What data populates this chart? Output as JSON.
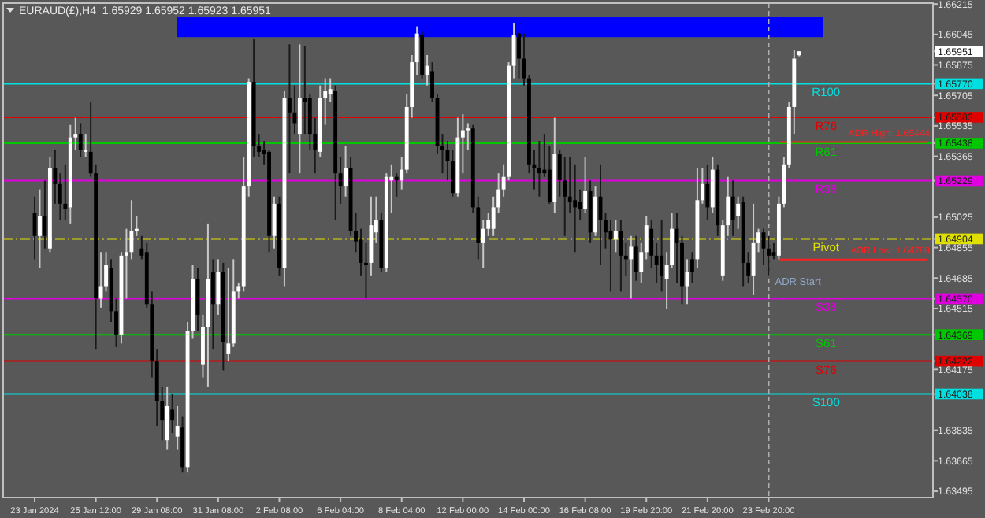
{
  "chart_data": {
    "type": "candlestick",
    "title": "EURAUD(£),H4  1.65929 1.65952 1.65923 1.65951",
    "categories": [
      "23 Jan 2024",
      null,
      null,
      null,
      null,
      null,
      null,
      null,
      null,
      null,
      null,
      null,
      "25 Jan 12:00",
      null,
      null,
      null,
      null,
      null,
      null,
      null,
      null,
      null,
      null,
      null,
      "29 Jan 08:00",
      null,
      null,
      null,
      null,
      null,
      null,
      null,
      null,
      null,
      null,
      null,
      "31 Jan 08:00",
      null,
      null,
      null,
      null,
      null,
      null,
      null,
      null,
      null,
      null,
      null,
      "2 Feb 08:00",
      null,
      null,
      null,
      null,
      null,
      null,
      null,
      null,
      null,
      null,
      null,
      "6 Feb 04:00",
      null,
      null,
      null,
      null,
      null,
      null,
      null,
      null,
      null,
      null,
      null,
      "8 Feb 04:00",
      null,
      null,
      null,
      null,
      null,
      null,
      null,
      null,
      null,
      null,
      null,
      "12 Feb 00:00",
      null,
      null,
      null,
      null,
      null,
      null,
      null,
      null,
      null,
      null,
      null,
      "14 Feb 00:00",
      null,
      null,
      null,
      null,
      null,
      null,
      null,
      null,
      null,
      null,
      null,
      "16 Feb 08:00",
      null,
      null,
      null,
      null,
      null,
      null,
      null,
      null,
      null,
      null,
      null,
      "19 Feb 20:00",
      null,
      null,
      null,
      null,
      null,
      null,
      null,
      null,
      null,
      null,
      null,
      "21 Feb 20:00",
      null,
      null,
      null,
      null,
      null,
      null,
      null,
      null,
      null,
      null,
      null,
      "23 Feb 20:00",
      null,
      null,
      null,
      null,
      null,
      null,
      null,
      null,
      null,
      null,
      null,
      null,
      null,
      null,
      null,
      null,
      null,
      null,
      null,
      null,
      null,
      null,
      null,
      null,
      null,
      null,
      null,
      null,
      null,
      null,
      null
    ],
    "ohlc": [
      [
        1.6505,
        1.6514,
        1.6479,
        1.6492
      ],
      [
        1.6492,
        1.6518,
        1.6474,
        1.6503
      ],
      [
        1.6503,
        1.6523,
        1.6485,
        1.6492
      ],
      [
        1.6485,
        1.6536,
        1.6483,
        1.653
      ],
      [
        1.653,
        1.654,
        1.651,
        1.6521
      ],
      [
        1.6521,
        1.6527,
        1.6501,
        1.651
      ],
      [
        1.651,
        1.6532,
        1.6501,
        1.6507
      ],
      [
        1.6508,
        1.6554,
        1.6499,
        1.6547
      ],
      [
        1.6547,
        1.6558,
        1.654,
        1.6549
      ],
      [
        1.6549,
        1.6555,
        1.6536,
        1.654
      ],
      [
        1.6539,
        1.6549,
        1.6536,
        1.654
      ],
      [
        1.6539,
        1.6567,
        1.6525,
        1.6527
      ],
      [
        1.6527,
        1.6532,
        1.6429,
        1.6457
      ],
      [
        1.6457,
        1.6483,
        1.6452,
        1.6464
      ],
      [
        1.6464,
        1.6483,
        1.6461,
        1.6476
      ],
      [
        1.6474,
        1.6479,
        1.6444,
        1.645
      ],
      [
        1.645,
        1.6457,
        1.643,
        1.6437
      ],
      [
        1.6437,
        1.6483,
        1.6432,
        1.6481
      ],
      [
        1.6481,
        1.6496,
        1.6457,
        1.6483
      ],
      [
        1.6483,
        1.6512,
        1.6479,
        1.6495
      ],
      [
        1.6495,
        1.6503,
        1.6492,
        1.6496
      ],
      [
        1.6485,
        1.6492,
        1.6479,
        1.6481
      ],
      [
        1.6483,
        1.6488,
        1.6452,
        1.6454
      ],
      [
        1.6454,
        1.6461,
        1.6413,
        1.6422
      ],
      [
        1.6422,
        1.6429,
        1.6386,
        1.64
      ],
      [
        1.64,
        1.6408,
        1.6378,
        1.6389
      ],
      [
        1.6378,
        1.6408,
        1.6373,
        1.6397
      ],
      [
        1.6395,
        1.6404,
        1.6382,
        1.6389
      ],
      [
        1.638,
        1.6397,
        1.6373,
        1.6386
      ],
      [
        1.6385,
        1.6391,
        1.636,
        1.6363
      ],
      [
        1.6363,
        1.6444,
        1.636,
        1.6439
      ],
      [
        1.6439,
        1.6476,
        1.6435,
        1.6468
      ],
      [
        1.6468,
        1.6474,
        1.6439,
        1.6448
      ],
      [
        1.642,
        1.6448,
        1.6413,
        1.6441
      ],
      [
        1.6441,
        1.6499,
        1.6408,
        1.6468
      ],
      [
        1.6472,
        1.6479,
        1.6429,
        1.6454
      ],
      [
        1.6454,
        1.6479,
        1.6448,
        1.6472
      ],
      [
        1.6472,
        1.6477,
        1.6417,
        1.6433
      ],
      [
        1.6426,
        1.6474,
        1.6422,
        1.6432
      ],
      [
        1.6432,
        1.6479,
        1.643,
        1.6461
      ],
      [
        1.6461,
        1.6466,
        1.6457,
        1.6464
      ],
      [
        1.6464,
        1.6536,
        1.6461,
        1.652
      ],
      [
        1.652,
        1.658,
        1.6514,
        1.6578
      ],
      [
        1.6578,
        1.6602,
        1.6536,
        1.6542
      ],
      [
        1.6542,
        1.6549,
        1.6536,
        1.6539
      ],
      [
        1.654,
        1.6545,
        1.6532,
        1.6538
      ],
      [
        1.6539,
        1.654,
        1.6483,
        1.6492
      ],
      [
        1.6492,
        1.6514,
        1.6485,
        1.651
      ],
      [
        1.651,
        1.6514,
        1.647,
        1.6474
      ],
      [
        1.6474,
        1.6573,
        1.6464,
        1.6569
      ],
      [
        1.6569,
        1.6599,
        1.6527,
        1.6561
      ],
      [
        1.6561,
        1.6576,
        1.6549,
        1.6555
      ],
      [
        1.6549,
        1.6599,
        1.6527,
        1.6569
      ],
      [
        1.6569,
        1.6598,
        1.6549,
        1.6567
      ],
      [
        1.6569,
        1.6571,
        1.654,
        1.6549
      ],
      [
        1.6549,
        1.6558,
        1.6527,
        1.654
      ],
      [
        1.6539,
        1.6576,
        1.6536,
        1.6569
      ],
      [
        1.6569,
        1.658,
        1.6554,
        1.6573
      ],
      [
        1.6571,
        1.658,
        1.6567,
        1.6574
      ],
      [
        1.6573,
        1.6576,
        1.6501,
        1.6527
      ],
      [
        1.6527,
        1.6536,
        1.651,
        1.652
      ],
      [
        1.652,
        1.6542,
        1.6514,
        1.653
      ],
      [
        1.653,
        1.6536,
        1.6492,
        1.6495
      ],
      [
        1.6495,
        1.6505,
        1.6483,
        1.6489
      ],
      [
        1.649,
        1.6496,
        1.647,
        1.6477
      ],
      [
        1.6477,
        1.6488,
        1.6457,
        1.6476
      ],
      [
        1.6477,
        1.6514,
        1.647,
        1.6498
      ],
      [
        1.6494,
        1.6514,
        1.6488,
        1.6501
      ],
      [
        1.6501,
        1.6505,
        1.6472,
        1.6474
      ],
      [
        1.6474,
        1.6527,
        1.6472,
        1.6525
      ],
      [
        1.6523,
        1.6532,
        1.6505,
        1.6525
      ],
      [
        1.6525,
        1.6527,
        1.6514,
        1.6523
      ],
      [
        1.6523,
        1.6536,
        1.6518,
        1.6529
      ],
      [
        1.6529,
        1.6571,
        1.6527,
        1.6564
      ],
      [
        1.6564,
        1.6593,
        1.6558,
        1.6589
      ],
      [
        1.6589,
        1.6609,
        1.6582,
        1.6605
      ],
      [
        1.6604,
        1.6606,
        1.658,
        1.6582
      ],
      [
        1.6582,
        1.6593,
        1.6576,
        1.6587
      ],
      [
        1.6584,
        1.6589,
        1.6567,
        1.6569
      ],
      [
        1.6569,
        1.6571,
        1.6538,
        1.6542
      ],
      [
        1.6542,
        1.6549,
        1.6527,
        1.654
      ],
      [
        1.654,
        1.6545,
        1.6523,
        1.6534
      ],
      [
        1.6534,
        1.654,
        1.6514,
        1.6516
      ],
      [
        1.6516,
        1.6558,
        1.6514,
        1.6547
      ],
      [
        1.6547,
        1.656,
        1.6527,
        1.6551
      ],
      [
        1.6551,
        1.6555,
        1.654,
        1.6552
      ],
      [
        1.6552,
        1.6554,
        1.6505,
        1.6508
      ],
      [
        1.6508,
        1.6514,
        1.6479,
        1.6488
      ],
      [
        1.6488,
        1.6501,
        1.6474,
        1.6496
      ],
      [
        1.6496,
        1.6505,
        1.6492,
        1.6501
      ],
      [
        1.6496,
        1.6514,
        1.6492,
        1.6508
      ],
      [
        1.6508,
        1.6527,
        1.6505,
        1.6518
      ],
      [
        1.6518,
        1.6532,
        1.6514,
        1.6525
      ],
      [
        1.6525,
        1.6589,
        1.6523,
        1.6587
      ],
      [
        1.6587,
        1.6611,
        1.658,
        1.6604
      ],
      [
        1.6605,
        1.6606,
        1.658,
        1.6591
      ],
      [
        1.6591,
        1.6605,
        1.6576,
        1.658
      ],
      [
        1.658,
        1.6582,
        1.6527,
        1.6532
      ],
      [
        1.6532,
        1.654,
        1.6518,
        1.653
      ],
      [
        1.653,
        1.6545,
        1.6514,
        1.6527
      ],
      [
        1.6529,
        1.6549,
        1.6525,
        1.6527
      ],
      [
        1.6529,
        1.6542,
        1.651,
        1.6511
      ],
      [
        1.6511,
        1.6558,
        1.6505,
        1.6538
      ],
      [
        1.6538,
        1.654,
        1.6514,
        1.6523
      ],
      [
        1.6523,
        1.6536,
        1.6492,
        1.6514
      ],
      [
        1.6514,
        1.6536,
        1.6505,
        1.6511
      ],
      [
        1.6512,
        1.6532,
        1.6483,
        1.6508
      ],
      [
        1.6511,
        1.6518,
        1.6501,
        1.6507
      ],
      [
        1.6507,
        1.6536,
        1.6505,
        1.6517
      ],
      [
        1.6517,
        1.6523,
        1.6488,
        1.6494
      ],
      [
        1.6494,
        1.652,
        1.6492,
        1.6514
      ],
      [
        1.6514,
        1.6532,
        1.6476,
        1.6501
      ],
      [
        1.6501,
        1.6505,
        1.6485,
        1.6494
      ],
      [
        1.6495,
        1.6501,
        1.6461,
        1.649
      ],
      [
        1.649,
        1.6501,
        1.6483,
        1.6495
      ],
      [
        1.6495,
        1.6501,
        1.6461,
        1.6481
      ],
      [
        1.6481,
        1.6488,
        1.647,
        1.6479
      ],
      [
        1.6479,
        1.6492,
        1.6457,
        1.6486
      ],
      [
        1.6486,
        1.6492,
        1.6467,
        1.6472
      ],
      [
        1.6472,
        1.6488,
        1.6466,
        1.6483
      ],
      [
        1.6483,
        1.6503,
        1.6479,
        1.6498
      ],
      [
        1.6496,
        1.6501,
        1.6474,
        1.6481
      ],
      [
        1.6481,
        1.6488,
        1.6466,
        1.6476
      ],
      [
        1.6481,
        1.6501,
        1.6461,
        1.647
      ],
      [
        1.6468,
        1.6483,
        1.6451,
        1.6476
      ],
      [
        1.6476,
        1.6505,
        1.6474,
        1.6496
      ],
      [
        1.6496,
        1.6505,
        1.6466,
        1.6488
      ],
      [
        1.6488,
        1.6492,
        1.6454,
        1.6464
      ],
      [
        1.6464,
        1.6479,
        1.6454,
        1.6472
      ],
      [
        1.6479,
        1.6483,
        1.6466,
        1.6472
      ],
      [
        1.6479,
        1.653,
        1.6474,
        1.6512
      ],
      [
        1.6512,
        1.653,
        1.651,
        1.6521
      ],
      [
        1.6521,
        1.6532,
        1.6501,
        1.6508
      ],
      [
        1.6508,
        1.6536,
        1.6505,
        1.6529
      ],
      [
        1.6529,
        1.6532,
        1.6492,
        1.6498
      ],
      [
        1.647,
        1.6501,
        1.6467,
        1.6498
      ],
      [
        1.6498,
        1.6525,
        1.6492,
        1.6514
      ],
      [
        1.6514,
        1.6523,
        1.6492,
        1.6501
      ],
      [
        1.6503,
        1.6514,
        1.6496,
        1.651
      ],
      [
        1.6511,
        1.6514,
        1.6464,
        1.6477
      ],
      [
        1.6477,
        1.6483,
        1.6466,
        1.647
      ],
      [
        1.647,
        1.651,
        1.6459,
        1.6488
      ],
      [
        1.6488,
        1.6496,
        1.6483,
        1.6494
      ],
      [
        1.6494,
        1.6496,
        1.6476,
        1.6485
      ],
      [
        1.6485,
        1.6492,
        1.647,
        1.6481
      ],
      [
        1.6483,
        1.6488,
        1.6479,
        1.6481
      ],
      [
        1.6481,
        1.6514,
        1.6479,
        1.651
      ],
      [
        1.651,
        1.6536,
        1.6508,
        1.6532
      ],
      [
        1.6532,
        1.6567,
        1.653,
        1.6564
      ],
      [
        1.6564,
        1.6596,
        1.6549,
        1.6591
      ],
      [
        1.65929,
        1.65952,
        1.65923,
        1.65951
      ],
      null,
      null,
      null,
      null,
      null,
      null,
      null,
      null,
      null,
      null,
      null,
      null,
      null,
      null,
      null,
      null,
      null,
      null,
      null,
      null,
      null,
      null,
      null,
      null,
      null
    ],
    "series": [
      {
        "type": "line",
        "name": "ADR High: 1.65444",
        "color": "#ff2020",
        "values": [
          null,
          null,
          null,
          null,
          null,
          null,
          null,
          null,
          null,
          null,
          null,
          null,
          null,
          null,
          null,
          null,
          null,
          null,
          null,
          null,
          null,
          null,
          null,
          null,
          null,
          null,
          null,
          null,
          null,
          null,
          null,
          null,
          null,
          null,
          null,
          null,
          null,
          null,
          null,
          null,
          null,
          null,
          null,
          null,
          null,
          null,
          null,
          null,
          null,
          null,
          null,
          null,
          null,
          null,
          null,
          null,
          null,
          null,
          null,
          null,
          null,
          null,
          null,
          null,
          null,
          null,
          null,
          null,
          null,
          null,
          null,
          null,
          null,
          null,
          null,
          null,
          null,
          null,
          null,
          null,
          null,
          null,
          null,
          null,
          null,
          null,
          null,
          null,
          null,
          null,
          null,
          null,
          null,
          null,
          null,
          null,
          null,
          null,
          null,
          null,
          null,
          null,
          null,
          null,
          null,
          null,
          null,
          null,
          null,
          null,
          null,
          null,
          null,
          null,
          null,
          null,
          null,
          null,
          null,
          null,
          null,
          null,
          null,
          null,
          null,
          null,
          null,
          null,
          null,
          null,
          null,
          null,
          null,
          null,
          null,
          null,
          null,
          null,
          null,
          null,
          null,
          null,
          null,
          null,
          null,
          null,
          1.65444,
          1.65444,
          1.65444,
          1.65444,
          1.65444,
          1.65444,
          1.65444,
          1.65444,
          1.65444,
          1.65444,
          1.65444,
          1.65444,
          1.65444,
          1.65444,
          1.65444,
          1.65444,
          1.65444,
          1.65444,
          1.65444,
          1.65444,
          1.65444,
          1.65444,
          1.65444,
          1.65444,
          1.65444,
          1.65444,
          1.65444,
          1.65444,
          1.65444,
          1.65444
        ]
      },
      {
        "type": "line",
        "name": "ADR Low: 1.64788",
        "color": "#ff2020",
        "values": [
          null,
          null,
          null,
          null,
          null,
          null,
          null,
          null,
          null,
          null,
          null,
          null,
          null,
          null,
          null,
          null,
          null,
          null,
          null,
          null,
          null,
          null,
          null,
          null,
          null,
          null,
          null,
          null,
          null,
          null,
          null,
          null,
          null,
          null,
          null,
          null,
          null,
          null,
          null,
          null,
          null,
          null,
          null,
          null,
          null,
          null,
          null,
          null,
          null,
          null,
          null,
          null,
          null,
          null,
          null,
          null,
          null,
          null,
          null,
          null,
          null,
          null,
          null,
          null,
          null,
          null,
          null,
          null,
          null,
          null,
          null,
          null,
          null,
          null,
          null,
          null,
          null,
          null,
          null,
          null,
          null,
          null,
          null,
          null,
          null,
          null,
          null,
          null,
          null,
          null,
          null,
          null,
          null,
          null,
          null,
          null,
          null,
          null,
          null,
          null,
          null,
          null,
          null,
          null,
          null,
          null,
          null,
          null,
          null,
          null,
          null,
          null,
          null,
          null,
          null,
          null,
          null,
          null,
          null,
          null,
          null,
          null,
          null,
          null,
          null,
          null,
          null,
          null,
          null,
          null,
          null,
          null,
          null,
          null,
          null,
          null,
          null,
          null,
          null,
          null,
          null,
          null,
          null,
          null,
          null,
          null,
          1.64788,
          1.64788,
          1.64788,
          1.64788,
          1.64788,
          1.64788,
          1.64788,
          1.64788,
          1.64788,
          1.64788,
          1.64788,
          1.64788,
          1.64788,
          1.64788,
          1.64788,
          1.64788,
          1.64788,
          1.64788,
          1.64788,
          1.64788,
          1.64788,
          1.64788,
          1.64788,
          1.64788,
          1.64788,
          1.64788,
          1.64788,
          1.64788,
          1.64788,
          1.64788
        ]
      }
    ],
    "ylim": [
      1.6346,
      1.6622
    ],
    "yticks": [
      1.66215,
      1.66045,
      {
        "value": 1.65951,
        "label": "1.65951"
      },
      1.65875,
      {
        "value": 1.6577,
        "label": "1.65770"
      },
      1.65705,
      {
        "value": 1.65583,
        "label": "1.65583"
      },
      1.65535,
      {
        "value": 1.65438,
        "label": "1.65438"
      },
      1.65365,
      {
        "value": 1.65229,
        "label": "1.65229"
      },
      1.65025,
      {
        "value": 1.64904,
        "label": "1.64904"
      },
      1.64855,
      1.64685,
      {
        "value": 1.6457,
        "label": "1.64570"
      },
      1.64515,
      {
        "value": 1.64369,
        "label": "1.64369"
      },
      {
        "value": 1.64222,
        "label": "1.64222"
      },
      1.64175,
      {
        "value": 1.64038,
        "label": "1.64038"
      },
      1.63835,
      1.63665,
      1.63495
    ],
    "ref_lines": [
      {
        "axis": "y",
        "value": 1.6577,
        "label": "R100",
        "color": "#00e0e0"
      },
      {
        "axis": "y",
        "value": 1.65583,
        "label": "R76",
        "color": "#e00000"
      },
      {
        "axis": "y",
        "value": 1.65438,
        "label": "R61",
        "color": "#00c800"
      },
      {
        "axis": "y",
        "value": 1.65229,
        "label": "R38",
        "color": "#e000e0"
      },
      {
        "axis": "y",
        "value": 1.64904,
        "label": "Pivot",
        "color": "#e0e000",
        "line_style": "dashed"
      },
      {
        "axis": "y",
        "value": 1.6457,
        "label": "S38",
        "color": "#e000e0"
      },
      {
        "axis": "y",
        "value": 1.64369,
        "label": "S61",
        "color": "#00c800"
      },
      {
        "axis": "y",
        "value": 1.64222,
        "label": "S76",
        "color": "#e00000"
      },
      {
        "axis": "y",
        "value": 1.64038,
        "label": "S100",
        "color": "#00e0e0"
      },
      {
        "axis": "x",
        "value": "23 Feb 20:00",
        "color": "#b0b0b0",
        "line_style": "dotted"
      }
    ],
    "bands": [
      {
        "axis": "y",
        "from": 1.6603,
        "to": 1.66145,
        "color": "#0000ff"
      }
    ],
    "annotations": [
      "ADR Start"
    ],
    "grid": false
  }
}
